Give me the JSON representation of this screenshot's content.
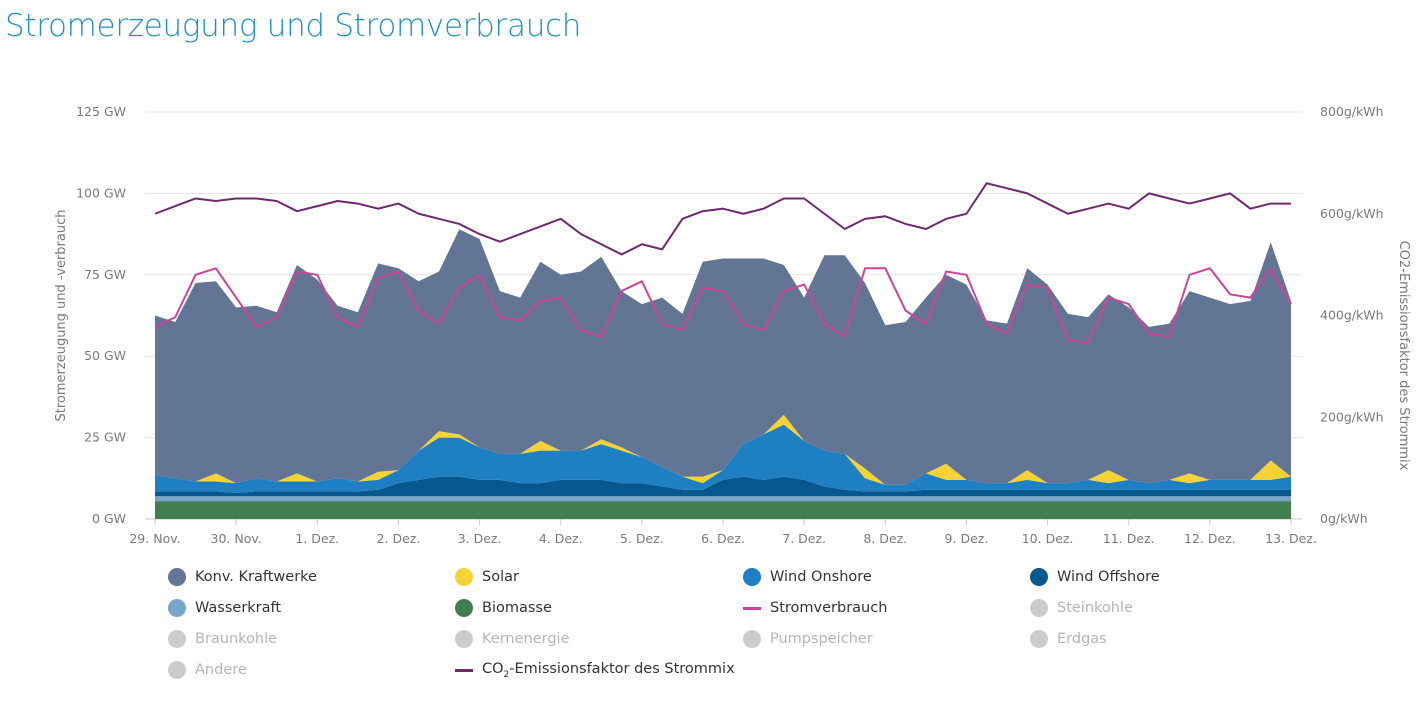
{
  "title": "Stromerzeugung und Stromverbrauch",
  "chart_data": {
    "type": "area",
    "title": "Stromerzeugung und Stromverbrauch",
    "x_unit": "days",
    "x_range": [
      "29. Nov.",
      "13. Dez."
    ],
    "x_ticks": [
      "29. Nov.",
      "30. Nov.",
      "1. Dez.",
      "2. Dez.",
      "3. Dez.",
      "4. Dez.",
      "5. Dez.",
      "6. Dez.",
      "7. Dez.",
      "8. Dez.",
      "9. Dez.",
      "10. Dez.",
      "11. Dez.",
      "12. Dez.",
      "13. Dez."
    ],
    "ylabel_left": "Stromerzeugung und -verbrauch",
    "ylabel_right": "CO2-Emissionsfaktor des Strommix",
    "ylim_left": [
      0,
      125
    ],
    "ylim_right": [
      0,
      800
    ],
    "yticks_left": [
      "0 GW",
      "25 GW",
      "50 GW",
      "75 GW",
      "100 GW",
      "125 GW"
    ],
    "yticks_right": [
      "0g/kWh",
      "200g/kWh",
      "400g/kWh",
      "600g/kWh",
      "800g/kWh"
    ],
    "x": [
      0,
      0.25,
      0.5,
      0.75,
      1,
      1.25,
      1.5,
      1.75,
      2,
      2.25,
      2.5,
      2.75,
      3,
      3.25,
      3.5,
      3.75,
      4,
      4.25,
      4.5,
      4.75,
      5,
      5.25,
      5.5,
      5.75,
      6,
      6.25,
      6.5,
      6.75,
      7,
      7.25,
      7.5,
      7.75,
      8,
      8.25,
      8.5,
      8.75,
      9,
      9.25,
      9.5,
      9.75,
      10,
      10.25,
      10.5,
      10.75,
      11,
      11.25,
      11.5,
      11.75,
      12,
      12.25,
      12.5,
      12.75,
      13,
      13.25,
      13.5,
      13.75,
      14
    ],
    "stack_order": [
      "Biomasse",
      "Wasserkraft",
      "Wind Offshore",
      "Wind Onshore",
      "Solar",
      "Konv. Kraftwerke"
    ],
    "series": [
      {
        "name": "Biomasse",
        "type": "area",
        "color": "#427e4f",
        "values": [
          5.5,
          5.5,
          5.5,
          5.5,
          5.5,
          5.5,
          5.5,
          5.5,
          5.5,
          5.5,
          5.5,
          5.5,
          5.5,
          5.5,
          5.5,
          5.5,
          5.5,
          5.5,
          5.5,
          5.5,
          5.5,
          5.5,
          5.5,
          5.5,
          5.5,
          5.5,
          5.5,
          5.5,
          5.5,
          5.5,
          5.5,
          5.5,
          5.5,
          5.5,
          5.5,
          5.5,
          5.5,
          5.5,
          5.5,
          5.5,
          5.5,
          5.5,
          5.5,
          5.5,
          5.5,
          5.5,
          5.5,
          5.5,
          5.5,
          5.5,
          5.5,
          5.5,
          5.5,
          5.5,
          5.5,
          5.5,
          5.5
        ]
      },
      {
        "name": "Wasserkraft",
        "type": "area",
        "color": "#7aa6cc",
        "values": [
          1.5,
          1.5,
          1.5,
          1.5,
          1.5,
          1.5,
          1.5,
          1.5,
          1.5,
          1.5,
          1.5,
          1.5,
          1.5,
          1.5,
          1.5,
          1.5,
          1.5,
          1.5,
          1.5,
          1.5,
          1.5,
          1.5,
          1.5,
          1.5,
          1.5,
          1.5,
          1.5,
          1.5,
          1.5,
          1.5,
          1.5,
          1.5,
          1.5,
          1.5,
          1.5,
          1.5,
          1.5,
          1.5,
          1.5,
          1.5,
          1.5,
          1.5,
          1.5,
          1.5,
          1.5,
          1.5,
          1.5,
          1.5,
          1.5,
          1.5,
          1.5,
          1.5,
          1.5,
          1.5,
          1.5,
          1.5,
          1.5
        ]
      },
      {
        "name": "Wind Offshore",
        "type": "area",
        "color": "#06588f",
        "values": [
          1.5,
          1.5,
          1.5,
          1.5,
          1,
          1.5,
          1.5,
          1.5,
          1.5,
          1.5,
          1.5,
          2,
          4,
          5,
          6,
          6,
          5,
          5,
          4,
          4,
          5,
          5,
          5,
          4,
          4,
          3,
          2,
          2,
          5,
          6,
          5,
          6,
          5,
          3,
          2,
          1.5,
          1.5,
          1.5,
          2,
          2,
          2,
          2,
          2,
          2,
          2,
          2,
          2,
          2,
          2,
          2,
          2,
          2,
          2,
          2,
          2,
          2,
          2
        ]
      },
      {
        "name": "Wind Onshore",
        "type": "area",
        "color": "#1e7fc2",
        "values": [
          5,
          4,
          3,
          3,
          3,
          4,
          3,
          3,
          3,
          4,
          3,
          3,
          4,
          9,
          12,
          12,
          10,
          8,
          9,
          10,
          9,
          9,
          11,
          10,
          8,
          6,
          4,
          2,
          3,
          10,
          14,
          16,
          12,
          11,
          11,
          4,
          2,
          2,
          5,
          3,
          3,
          2,
          2,
          3,
          2,
          2,
          3,
          2,
          3,
          2,
          3,
          2,
          3,
          3,
          3,
          3,
          4
        ]
      },
      {
        "name": "Solar",
        "type": "area",
        "color": "#f5d334",
        "values": [
          0,
          0,
          0,
          2.5,
          0,
          0,
          0,
          2.5,
          0,
          0,
          0,
          2.5,
          0,
          0,
          2,
          1,
          0,
          0,
          0,
          3,
          0,
          0,
          1.5,
          1,
          0,
          0,
          0,
          2,
          0,
          0,
          0,
          3,
          0,
          0,
          0,
          3,
          0,
          0,
          0,
          5,
          0,
          0,
          0,
          3,
          0,
          0,
          0,
          4,
          0,
          0,
          0,
          3,
          0,
          0,
          0,
          6,
          0
        ]
      },
      {
        "name": "Konv. Kraftwerke",
        "type": "area",
        "color": "#627594",
        "values": [
          49,
          48,
          61,
          59,
          54,
          53,
          52,
          64,
          62,
          53,
          52,
          64,
          62,
          52,
          49,
          63,
          64,
          50,
          48,
          55,
          54,
          55,
          56,
          48,
          47,
          52,
          50,
          66,
          65,
          57,
          54,
          46,
          44,
          60,
          61,
          57,
          49,
          50,
          54,
          58,
          60,
          50,
          49,
          62,
          61,
          52,
          50,
          54,
          53,
          48,
          48,
          56,
          56,
          54,
          55,
          67,
          54
        ]
      },
      {
        "name": "Stromverbrauch",
        "type": "line",
        "color": "#cc4599",
        "values": [
          59,
          62,
          75,
          77,
          68,
          59,
          62,
          76,
          75,
          62,
          59,
          74,
          76,
          64,
          60,
          71,
          75,
          62,
          61,
          67,
          68,
          58,
          56,
          70,
          73,
          60,
          58,
          71,
          70,
          60,
          58,
          70,
          72,
          60,
          56,
          77,
          77,
          64,
          60,
          76,
          75,
          60,
          57,
          72,
          71,
          55,
          54,
          68,
          66,
          57,
          56,
          75,
          77,
          69,
          68,
          77,
          66
        ]
      },
      {
        "name": "CO2-Emissionsfaktor des Strommix",
        "type": "line",
        "axis": "right",
        "color": "#6e2a6e",
        "values": [
          600,
          615,
          630,
          625,
          630,
          630,
          625,
          605,
          615,
          625,
          620,
          610,
          620,
          600,
          590,
          580,
          560,
          545,
          560,
          575,
          590,
          560,
          540,
          520,
          540,
          530,
          590,
          605,
          610,
          600,
          610,
          630,
          630,
          600,
          570,
          590,
          595,
          580,
          570,
          590,
          600,
          660,
          650,
          640,
          620,
          600,
          610,
          620,
          610,
          640,
          630,
          620,
          630,
          640,
          610,
          620,
          620
        ]
      }
    ],
    "legend": [
      {
        "name": "Konv. Kraftwerke",
        "marker": "dot",
        "color": "#627594",
        "active": true
      },
      {
        "name": "Solar",
        "marker": "dot",
        "color": "#f5d334",
        "active": true
      },
      {
        "name": "Wind Onshore",
        "marker": "dot",
        "color": "#1e7fc2",
        "active": true
      },
      {
        "name": "Wind Offshore",
        "marker": "dot",
        "color": "#06588f",
        "active": true
      },
      {
        "name": "Wasserkraft",
        "marker": "dot",
        "color": "#7aa6cc",
        "active": true
      },
      {
        "name": "Biomasse",
        "marker": "dot",
        "color": "#427e4f",
        "active": true
      },
      {
        "name": "Stromverbrauch",
        "marker": "line",
        "color": "#cc4599",
        "active": true
      },
      {
        "name": "Steinkohle",
        "marker": "dot",
        "color": "#cccccc",
        "active": false
      },
      {
        "name": "Braunkohle",
        "marker": "dot",
        "color": "#cccccc",
        "active": false
      },
      {
        "name": "Kernenergie",
        "marker": "dot",
        "color": "#cccccc",
        "active": false
      },
      {
        "name": "Pumpspeicher",
        "marker": "dot",
        "color": "#cccccc",
        "active": false
      },
      {
        "name": "Erdgas",
        "marker": "dot",
        "color": "#cccccc",
        "active": false
      },
      {
        "name": "Andere",
        "marker": "dot",
        "color": "#cccccc",
        "active": false
      },
      {
        "name": "CO2-Emissionsfaktor des Strommix",
        "marker": "line",
        "color": "#6e2a6e",
        "active": true
      }
    ],
    "grid": true,
    "legend_position": "bottom"
  }
}
